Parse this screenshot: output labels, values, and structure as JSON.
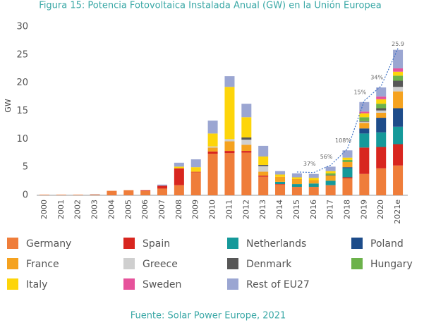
{
  "chart_data": {
    "type": "stacked_bar",
    "title": "Figura 15: Potencia Fotovoltaica Instalada Anual (GW) en la Unión Europea",
    "y_label": "GW",
    "source": "Fuente: Solar Power Europe, 2021",
    "categories": [
      "2000",
      "2001",
      "2002",
      "2003",
      "2004",
      "2005",
      "2006",
      "2007",
      "2008",
      "2009",
      "2010",
      "2011",
      "2012",
      "2013",
      "2014",
      "2015",
      "2016",
      "2017",
      "2018",
      "2019",
      "2020",
      "2021e"
    ],
    "ylim": [
      0,
      30
    ],
    "yticks": [
      0,
      5,
      10,
      15,
      20,
      25,
      30
    ],
    "growth_labels": [
      null,
      null,
      null,
      null,
      null,
      null,
      null,
      null,
      null,
      null,
      null,
      null,
      null,
      null,
      null,
      null,
      "37%",
      "56%",
      "108%",
      "15%",
      "34%",
      null
    ],
    "total_labels": [
      null,
      null,
      null,
      null,
      null,
      null,
      null,
      null,
      null,
      null,
      null,
      null,
      null,
      null,
      null,
      null,
      null,
      null,
      null,
      null,
      null,
      "25.9"
    ],
    "series": [
      {
        "name": "Germany",
        "color": "#ef7d3a",
        "values": [
          0.1,
          0.1,
          0.1,
          0.15,
          0.8,
          0.9,
          0.8,
          1.2,
          1.8,
          4.0,
          7.4,
          7.5,
          7.6,
          3.3,
          1.9,
          1.5,
          1.5,
          1.8,
          3.0,
          3.8,
          4.8,
          5.3
        ]
      },
      {
        "name": "Spain",
        "color": "#d8261f",
        "values": [
          0,
          0,
          0,
          0,
          0,
          0,
          0.1,
          0.5,
          3.0,
          0.1,
          0.4,
          0.4,
          0.3,
          0.2,
          0.1,
          0,
          0,
          0,
          0.2,
          4.7,
          3.8,
          3.8
        ]
      },
      {
        "name": "Netherlands",
        "color": "#15999a",
        "values": [
          0,
          0,
          0,
          0,
          0,
          0,
          0,
          0,
          0,
          0,
          0,
          0,
          0,
          0,
          0.4,
          0.5,
          0.6,
          0.8,
          1.6,
          2.5,
          2.6,
          3.1
        ]
      },
      {
        "name": "Poland",
        "color": "#1d4c8a",
        "values": [
          0,
          0,
          0,
          0,
          0,
          0,
          0,
          0,
          0,
          0,
          0,
          0,
          0,
          0,
          0,
          0,
          0,
          0,
          0.2,
          0.9,
          2.6,
          3.3
        ]
      },
      {
        "name": "France",
        "color": "#f5a21f",
        "values": [
          0,
          0,
          0,
          0,
          0,
          0,
          0,
          0,
          0,
          0.2,
          0.7,
          1.7,
          1.1,
          0.7,
          0.9,
          0.9,
          0.6,
          0.9,
          0.9,
          1.0,
          0.9,
          3.0
        ]
      },
      {
        "name": "Greece",
        "color": "#cfcfcf",
        "values": [
          0,
          0,
          0,
          0,
          0,
          0,
          0,
          0,
          0,
          0,
          0.2,
          0.4,
          0.9,
          1.0,
          0,
          0,
          0,
          0,
          0,
          0.2,
          0.4,
          0.8
        ]
      },
      {
        "name": "Denmark",
        "color": "#575757",
        "values": [
          0,
          0,
          0,
          0,
          0,
          0,
          0,
          0,
          0,
          0,
          0,
          0,
          0.4,
          0.2,
          0,
          0,
          0,
          0.1,
          0,
          0.1,
          0.4,
          1.1
        ]
      },
      {
        "name": "Hungary",
        "color": "#6cb24b",
        "values": [
          0,
          0,
          0,
          0,
          0,
          0,
          0,
          0,
          0,
          0,
          0,
          0,
          0,
          0,
          0,
          0,
          0,
          0.3,
          0.4,
          0.7,
          0.8,
          0.9
        ]
      },
      {
        "name": "Italy",
        "color": "#fdd50a",
        "values": [
          0,
          0,
          0,
          0,
          0,
          0,
          0,
          0,
          0.3,
          0.7,
          2.3,
          9.3,
          3.6,
          1.5,
          0.4,
          0.3,
          0.4,
          0.4,
          0.4,
          0.7,
          0.8,
          0.7
        ]
      },
      {
        "name": "Sweden",
        "color": "#e6529b",
        "values": [
          0,
          0,
          0,
          0,
          0,
          0,
          0,
          0,
          0,
          0,
          0,
          0,
          0,
          0,
          0,
          0,
          0,
          0,
          0,
          0.3,
          0.5,
          0.6
        ]
      },
      {
        "name": "Rest of EU27",
        "color": "#9ba6d2",
        "values": [
          0,
          0,
          0,
          0.05,
          0,
          0,
          0,
          0.2,
          0.7,
          1.4,
          2.3,
          1.9,
          2.4,
          1.9,
          0.6,
          0.7,
          0.7,
          0.8,
          1.3,
          1.7,
          1.6,
          3.3
        ]
      }
    ]
  }
}
